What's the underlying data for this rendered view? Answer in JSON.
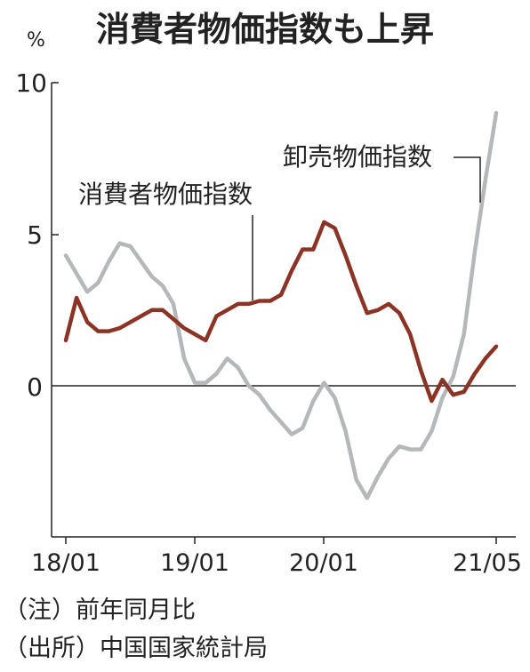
{
  "chart_data": {
    "type": "line",
    "title": "消費者物価指数も上昇",
    "unit": "%",
    "xlabel": "",
    "ylabel": "",
    "ylim": [
      -5,
      10
    ],
    "yticks": [
      "10",
      "5",
      "0"
    ],
    "xticks": [
      "18/01",
      "19/01",
      "20/01",
      "21/05"
    ],
    "x": [
      "2018-01",
      "2018-02",
      "2018-03",
      "2018-04",
      "2018-05",
      "2018-06",
      "2018-07",
      "2018-08",
      "2018-09",
      "2018-10",
      "2018-11",
      "2018-12",
      "2019-01",
      "2019-02",
      "2019-03",
      "2019-04",
      "2019-05",
      "2019-06",
      "2019-07",
      "2019-08",
      "2019-09",
      "2019-10",
      "2019-11",
      "2019-12",
      "2020-01",
      "2020-02",
      "2020-03",
      "2020-04",
      "2020-05",
      "2020-06",
      "2020-07",
      "2020-08",
      "2020-09",
      "2020-10",
      "2020-11",
      "2020-12",
      "2021-01",
      "2021-02",
      "2021-03",
      "2021-04",
      "2021-05"
    ],
    "series": [
      {
        "name": "消費者物価指数",
        "color": "#8b3324",
        "values": [
          1.5,
          2.9,
          2.1,
          1.8,
          1.8,
          1.9,
          2.1,
          2.3,
          2.5,
          2.5,
          2.2,
          1.9,
          1.7,
          1.5,
          2.3,
          2.5,
          2.7,
          2.7,
          2.8,
          2.8,
          3.0,
          3.8,
          4.5,
          4.5,
          5.4,
          5.2,
          4.3,
          3.3,
          2.4,
          2.5,
          2.7,
          2.4,
          1.7,
          0.5,
          -0.5,
          0.2,
          -0.3,
          -0.2,
          0.4,
          0.9,
          1.3
        ]
      },
      {
        "name": "卸売物価指数",
        "color": "#b5b8ba",
        "values": [
          4.3,
          3.7,
          3.1,
          3.4,
          4.1,
          4.7,
          4.6,
          4.1,
          3.6,
          3.3,
          2.7,
          0.9,
          0.1,
          0.1,
          0.4,
          0.9,
          0.6,
          0.0,
          -0.3,
          -0.8,
          -1.2,
          -1.6,
          -1.4,
          -0.5,
          0.1,
          -0.4,
          -1.5,
          -3.1,
          -3.7,
          -3.0,
          -2.4,
          -2.0,
          -2.1,
          -2.1,
          -1.5,
          -0.4,
          0.3,
          1.7,
          4.4,
          6.8,
          9.0
        ]
      }
    ],
    "annotations": [
      "消費者物価指数",
      "卸売物価指数"
    ]
  },
  "notes": [
    "（注）前年同月比",
    "（出所）中国国家統計局"
  ]
}
